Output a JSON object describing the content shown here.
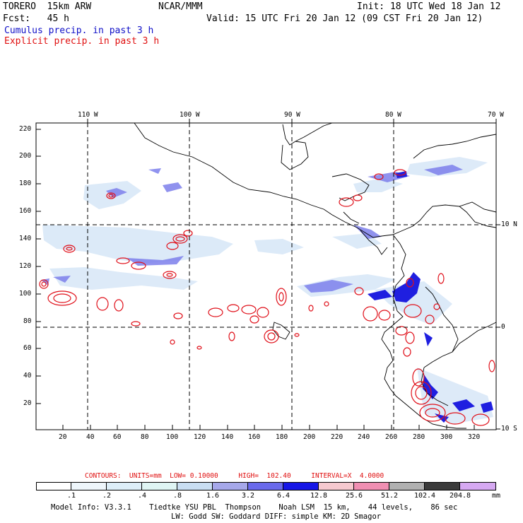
{
  "header": {
    "model": "TORERO  15km ARW",
    "org": "NCAR/MMM",
    "init": "Init: 18 UTC Wed 18 Jan 12",
    "fcst": "Fcst:   45 h",
    "valid": "Valid: 15 UTC Fri 20 Jan 12 (09 CST Fri 20 Jan 12)",
    "line_cumulus": "Cumulus precip. in past 3 h",
    "line_explicit": "Explicit precip. in past 3 h"
  },
  "map": {
    "lon_labels": [
      "110 W",
      "100 W",
      "90 W",
      "80 W",
      "70 W"
    ],
    "lat_labels": [
      "10 N",
      "0",
      "10 S"
    ],
    "y_ticks": [
      "220",
      "200",
      "180",
      "160",
      "140",
      "120",
      "100",
      "80",
      "60",
      "40",
      "20"
    ],
    "x_ticks": [
      "20",
      "40",
      "60",
      "80",
      "100",
      "120",
      "140",
      "160",
      "180",
      "200",
      "220",
      "240",
      "260",
      "280",
      "300",
      "320"
    ]
  },
  "contours": {
    "label": "CONTOURS:  UNITS=mm  LOW= 0.10000     HIGH=  102.40     INTERVAL=X  4.0000"
  },
  "colorbar": {
    "labels": [
      ".1",
      ".2",
      ".4",
      ".8",
      "1.6",
      "3.2",
      "6.4",
      "12.8",
      "25.6",
      "51.2",
      "102.4",
      "204.8"
    ],
    "unit": "mm",
    "colors": [
      "#ffffff",
      "#eef6fb",
      "#ddeef8",
      "#dff5f4",
      "#c9def2",
      "#a6a8ea",
      "#6a6aec",
      "#1616e6",
      "#f6c9cf",
      "#f08fb2",
      "#b1b1b1",
      "#3b3b3b",
      "#d6a9f2"
    ]
  },
  "footer": {
    "line1": "Model Info: V3.3.1    Tiedtke YSU PBL  Thompson    Noah LSM  15 km,    44 levels,    86 sec",
    "line2": "LW: Godd SW: Goddard DIFF: simple KM: 2D Smagor"
  }
}
